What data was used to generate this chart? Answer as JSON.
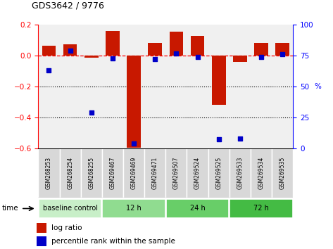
{
  "title": "GDS3642 / 9776",
  "samples": [
    "GSM268253",
    "GSM268254",
    "GSM268255",
    "GSM269467",
    "GSM269469",
    "GSM269471",
    "GSM269507",
    "GSM269524",
    "GSM269525",
    "GSM269533",
    "GSM269534",
    "GSM269535"
  ],
  "log_ratio": [
    0.065,
    0.075,
    -0.015,
    0.16,
    -0.595,
    0.085,
    0.155,
    0.13,
    -0.32,
    -0.04,
    0.085,
    0.085
  ],
  "percentile_rank": [
    63,
    79,
    29,
    73,
    4,
    72,
    77,
    74,
    7,
    8,
    74,
    76
  ],
  "groups": [
    {
      "label": "baseline control",
      "start": 0,
      "end": 3,
      "color": "#c8efc8"
    },
    {
      "label": "12 h",
      "start": 3,
      "end": 6,
      "color": "#90dc90"
    },
    {
      "label": "24 h",
      "start": 6,
      "end": 9,
      "color": "#68ce68"
    },
    {
      "label": "72 h",
      "start": 9,
      "end": 12,
      "color": "#44bb44"
    }
  ],
  "bar_color": "#c81800",
  "dot_color": "#0000c8",
  "ylim_left": [
    -0.6,
    0.2
  ],
  "ylim_right": [
    0,
    100
  ],
  "ylabel_left_ticks": [
    -0.6,
    -0.4,
    -0.2,
    0.0,
    0.2
  ],
  "ylabel_right_ticks": [
    0,
    25,
    50,
    75,
    100
  ],
  "background_color": "#ffffff",
  "plot_bg": "#f0f0f0",
  "label_box_color": "#d8d8d8"
}
